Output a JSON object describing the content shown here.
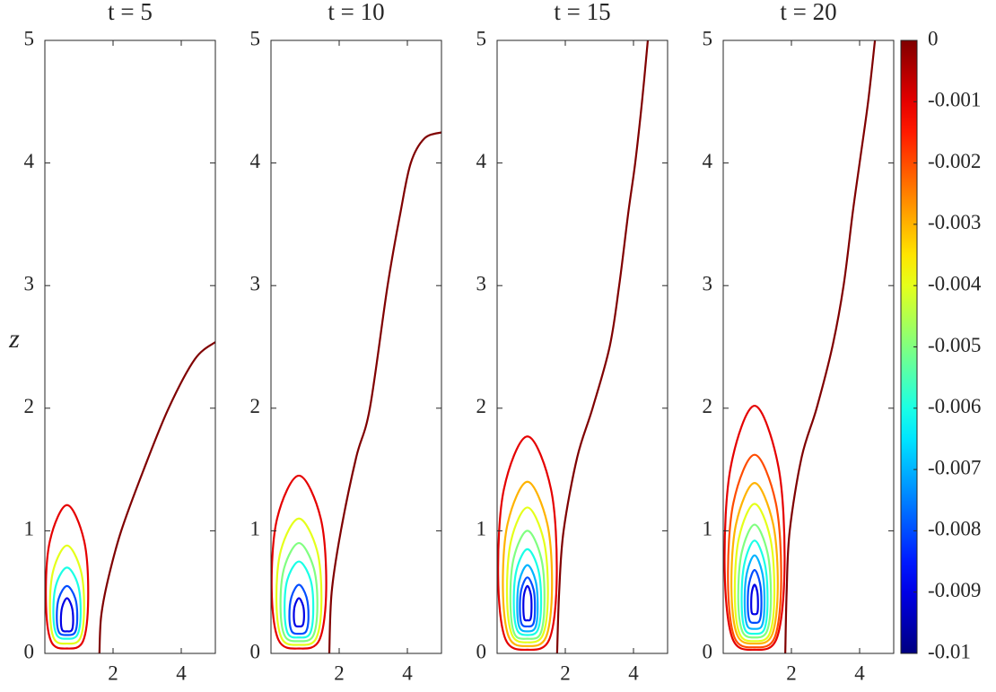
{
  "chart_data": [
    {
      "type": "contour",
      "title": "t = 5",
      "ylabel": "z",
      "xlim": [
        0,
        5
      ],
      "ylim": [
        0,
        5
      ],
      "xticks": [
        2,
        4
      ],
      "yticks": [
        0,
        1,
        2,
        3,
        4,
        5
      ],
      "contours": [
        {
          "level": -0.001,
          "closed": true,
          "x": [
            0.65,
            1.15,
            1.27,
            1.12,
            0.65,
            0.18,
            0.03,
            0.15
          ],
          "y": [
            1.21,
            0.92,
            0.45,
            0.1,
            0.04,
            0.1,
            0.45,
            0.92
          ]
        },
        {
          "level": -0.004,
          "closed": true,
          "x": [
            0.65,
            1.05,
            1.15,
            1.03,
            0.65,
            0.27,
            0.15,
            0.25
          ],
          "y": [
            0.88,
            0.68,
            0.36,
            0.12,
            0.08,
            0.12,
            0.36,
            0.68
          ]
        },
        {
          "level": -0.006,
          "closed": true,
          "x": [
            0.65,
            0.97,
            1.05,
            0.95,
            0.65,
            0.35,
            0.25,
            0.33
          ],
          "y": [
            0.7,
            0.56,
            0.32,
            0.15,
            0.12,
            0.15,
            0.32,
            0.56
          ]
        },
        {
          "level": -0.008,
          "closed": true,
          "x": [
            0.65,
            0.89,
            0.95,
            0.88,
            0.65,
            0.42,
            0.35,
            0.41
          ],
          "y": [
            0.55,
            0.45,
            0.29,
            0.17,
            0.15,
            0.17,
            0.29,
            0.45
          ]
        },
        {
          "level": -0.009,
          "closed": true,
          "x": [
            0.65,
            0.79,
            0.83,
            0.79,
            0.65,
            0.51,
            0.47,
            0.51
          ],
          "y": [
            0.45,
            0.38,
            0.27,
            0.19,
            0.18,
            0.19,
            0.27,
            0.38
          ]
        },
        {
          "level": 0,
          "x": [
            1.6,
            1.65,
            1.85,
            2.24,
            2.9,
            3.63,
            4.4,
            5
          ],
          "y": [
            0,
            0.3,
            0.6,
            1.0,
            1.5,
            2.0,
            2.4,
            2.54
          ]
        }
      ]
    },
    {
      "type": "contour",
      "title": "t = 10",
      "xlim": [
        0,
        5
      ],
      "ylim": [
        0,
        5
      ],
      "xticks": [
        2,
        4
      ],
      "yticks": [
        0,
        1,
        2,
        3,
        4,
        5
      ],
      "contours": [
        {
          "level": -0.001,
          "closed": true,
          "x": [
            0.82,
            1.46,
            1.62,
            1.42,
            0.82,
            0.22,
            0.02,
            0.18
          ],
          "y": [
            1.45,
            1.1,
            0.53,
            0.11,
            0.04,
            0.11,
            0.53,
            1.1
          ]
        },
        {
          "level": -0.004,
          "closed": true,
          "x": [
            0.82,
            1.35,
            1.48,
            1.32,
            0.82,
            0.32,
            0.16,
            0.29
          ],
          "y": [
            1.1,
            0.84,
            0.43,
            0.12,
            0.07,
            0.12,
            0.43,
            0.84
          ]
        },
        {
          "level": -0.005,
          "closed": true,
          "x": [
            0.82,
            1.25,
            1.36,
            1.23,
            0.82,
            0.41,
            0.28,
            0.39
          ],
          "y": [
            0.9,
            0.7,
            0.38,
            0.14,
            0.1,
            0.14,
            0.38,
            0.7
          ]
        },
        {
          "level": -0.006,
          "closed": true,
          "x": [
            0.82,
            1.16,
            1.24,
            1.14,
            0.82,
            0.5,
            0.4,
            0.48
          ],
          "y": [
            0.75,
            0.6,
            0.35,
            0.16,
            0.13,
            0.16,
            0.35,
            0.6
          ]
        },
        {
          "level": -0.008,
          "closed": true,
          "x": [
            0.82,
            1.04,
            1.1,
            1.03,
            0.82,
            0.61,
            0.54,
            0.6
          ],
          "y": [
            0.56,
            0.46,
            0.3,
            0.18,
            0.16,
            0.18,
            0.3,
            0.46
          ]
        },
        {
          "level": -0.009,
          "closed": true,
          "x": [
            0.82,
            0.94,
            0.97,
            0.93,
            0.82,
            0.71,
            0.67,
            0.7
          ],
          "y": [
            0.45,
            0.39,
            0.3,
            0.23,
            0.22,
            0.23,
            0.3,
            0.39
          ]
        },
        {
          "level": 0,
          "x": [
            1.71,
            1.78,
            2.05,
            2.5,
            2.9,
            3.42,
            3.8,
            4.1,
            4.5,
            5
          ],
          "y": [
            0,
            0.5,
            1.0,
            1.6,
            2.0,
            3.0,
            3.6,
            4.0,
            4.2,
            4.25
          ]
        }
      ]
    },
    {
      "type": "contour",
      "title": "t = 15",
      "xlim": [
        0,
        5
      ],
      "ylim": [
        0,
        5
      ],
      "xticks": [
        2,
        4
      ],
      "yticks": [
        0,
        1,
        2,
        3,
        4,
        5
      ],
      "contours": [
        {
          "level": -0.001,
          "closed": true,
          "x": [
            0.89,
            1.58,
            1.75,
            1.54,
            0.89,
            0.24,
            0.03,
            0.2
          ],
          "y": [
            1.77,
            1.34,
            0.64,
            0.12,
            0.03,
            0.12,
            0.64,
            1.34
          ]
        },
        {
          "level": -0.003,
          "closed": true,
          "x": [
            0.89,
            1.47,
            1.61,
            1.43,
            0.89,
            0.35,
            0.17,
            0.31
          ],
          "y": [
            1.4,
            1.06,
            0.53,
            0.13,
            0.06,
            0.13,
            0.53,
            1.06
          ]
        },
        {
          "level": -0.004,
          "closed": true,
          "x": [
            0.89,
            1.37,
            1.49,
            1.34,
            0.89,
            0.44,
            0.29,
            0.41
          ],
          "y": [
            1.19,
            0.92,
            0.48,
            0.15,
            0.09,
            0.15,
            0.48,
            0.92
          ]
        },
        {
          "level": -0.005,
          "closed": true,
          "x": [
            0.89,
            1.29,
            1.39,
            1.27,
            0.89,
            0.51,
            0.39,
            0.49
          ],
          "y": [
            1.0,
            0.78,
            0.43,
            0.16,
            0.12,
            0.16,
            0.43,
            0.78
          ]
        },
        {
          "level": -0.006,
          "closed": true,
          "x": [
            0.89,
            1.21,
            1.29,
            1.19,
            0.89,
            0.59,
            0.49,
            0.57
          ],
          "y": [
            0.85,
            0.68,
            0.4,
            0.19,
            0.15,
            0.19,
            0.4,
            0.68
          ]
        },
        {
          "level": -0.007,
          "closed": true,
          "x": [
            0.89,
            1.13,
            1.19,
            1.12,
            0.89,
            0.66,
            0.59,
            0.65
          ],
          "y": [
            0.72,
            0.59,
            0.37,
            0.21,
            0.18,
            0.21,
            0.37,
            0.59
          ]
        },
        {
          "level": -0.008,
          "closed": true,
          "x": [
            0.89,
            1.07,
            1.11,
            1.06,
            0.89,
            0.72,
            0.67,
            0.71
          ],
          "y": [
            0.62,
            0.52,
            0.36,
            0.24,
            0.22,
            0.24,
            0.36,
            0.52
          ]
        },
        {
          "level": -0.009,
          "closed": true,
          "x": [
            0.89,
            0.99,
            1.01,
            0.98,
            0.89,
            0.8,
            0.77,
            0.79
          ],
          "y": [
            0.55,
            0.48,
            0.37,
            0.28,
            0.27,
            0.28,
            0.37,
            0.48
          ]
        },
        {
          "level": 0,
          "x": [
            1.76,
            1.82,
            1.95,
            2.35,
            2.8,
            3.3,
            3.58,
            3.85,
            4.05,
            4.25,
            4.42
          ],
          "y": [
            0,
            0.5,
            1.0,
            1.6,
            2.0,
            2.5,
            3.0,
            3.6,
            4.0,
            4.5,
            5
          ]
        }
      ]
    },
    {
      "type": "contour",
      "title": "t = 20",
      "xlim": [
        0,
        5
      ],
      "ylim": [
        0,
        5
      ],
      "xticks": [
        2,
        4
      ],
      "yticks": [
        0,
        1,
        2,
        3,
        4,
        5
      ],
      "contours": [
        {
          "level": -0.001,
          "closed": true,
          "x": [
            0.92,
            1.62,
            1.8,
            1.58,
            0.92,
            0.26,
            0.04,
            0.22
          ],
          "y": [
            2.02,
            1.52,
            0.73,
            0.13,
            0.03,
            0.13,
            0.73,
            1.52
          ]
        },
        {
          "level": -0.002,
          "closed": true,
          "x": [
            0.92,
            1.54,
            1.7,
            1.51,
            0.92,
            0.33,
            0.14,
            0.3
          ],
          "y": [
            1.62,
            1.23,
            0.6,
            0.13,
            0.05,
            0.13,
            0.6,
            1.23
          ]
        },
        {
          "level": -0.003,
          "closed": true,
          "x": [
            0.92,
            1.46,
            1.6,
            1.43,
            0.92,
            0.41,
            0.24,
            0.38
          ],
          "y": [
            1.39,
            1.06,
            0.54,
            0.15,
            0.08,
            0.15,
            0.54,
            1.06
          ]
        },
        {
          "level": -0.004,
          "closed": true,
          "x": [
            0.92,
            1.38,
            1.5,
            1.36,
            0.92,
            0.48,
            0.34,
            0.46
          ],
          "y": [
            1.22,
            0.94,
            0.49,
            0.16,
            0.1,
            0.16,
            0.49,
            0.94
          ]
        },
        {
          "level": -0.005,
          "closed": true,
          "x": [
            0.92,
            1.3,
            1.4,
            1.28,
            0.92,
            0.56,
            0.44,
            0.54
          ],
          "y": [
            1.05,
            0.82,
            0.45,
            0.18,
            0.13,
            0.18,
            0.45,
            0.82
          ]
        },
        {
          "level": -0.006,
          "closed": true,
          "x": [
            0.92,
            1.22,
            1.3,
            1.21,
            0.92,
            0.63,
            0.54,
            0.62
          ],
          "y": [
            0.92,
            0.73,
            0.43,
            0.2,
            0.16,
            0.2,
            0.43,
            0.73
          ]
        },
        {
          "level": -0.007,
          "closed": true,
          "x": [
            0.92,
            1.15,
            1.21,
            1.14,
            0.92,
            0.7,
            0.63,
            0.69
          ],
          "y": [
            0.8,
            0.65,
            0.41,
            0.23,
            0.2,
            0.23,
            0.41,
            0.65
          ]
        },
        {
          "level": -0.008,
          "closed": true,
          "x": [
            0.92,
            1.08,
            1.12,
            1.07,
            0.92,
            0.77,
            0.72,
            0.76
          ],
          "y": [
            0.68,
            0.57,
            0.4,
            0.27,
            0.25,
            0.27,
            0.4,
            0.57
          ]
        },
        {
          "level": -0.009,
          "closed": true,
          "x": [
            0.92,
            1.0,
            1.02,
            1.0,
            0.92,
            0.84,
            0.82,
            0.84
          ],
          "y": [
            0.56,
            0.5,
            0.4,
            0.33,
            0.32,
            0.33,
            0.4,
            0.5
          ]
        },
        {
          "level": 0,
          "x": [
            1.82,
            1.86,
            1.95,
            2.3,
            2.74,
            3.2,
            3.53,
            3.8,
            4.0,
            4.25,
            4.45
          ],
          "y": [
            0,
            0.5,
            1.0,
            1.6,
            2.0,
            2.5,
            3.0,
            3.6,
            4.0,
            4.5,
            5
          ]
        }
      ]
    }
  ],
  "colorbar": {
    "colormap": "jet",
    "clim": [
      -0.01,
      0
    ],
    "ticks": [
      0,
      -0.001,
      -0.002,
      -0.003,
      -0.004,
      -0.005,
      -0.006,
      -0.007,
      -0.008,
      -0.009,
      -0.01
    ]
  }
}
